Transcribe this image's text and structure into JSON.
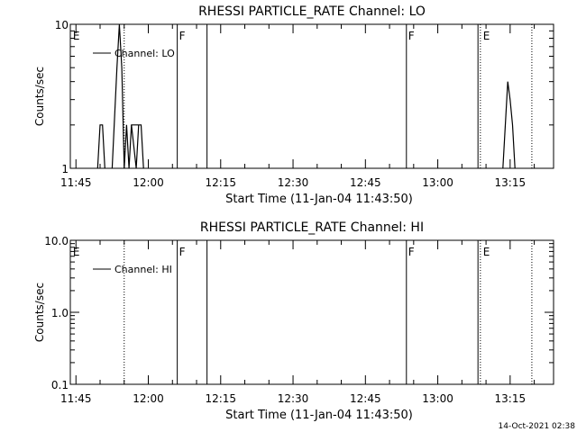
{
  "timestamp": "14-Oct-2021 02:38",
  "chart_data": [
    {
      "type": "line",
      "title": "RHESSI PARTICLE_RATE Channel: LO",
      "xlabel": "Start Time (11-Jan-04 11:43:50)",
      "ylabel": "Counts/sec",
      "y_scale": "log",
      "x_range": [
        "11:43:50",
        "13:24:00"
      ],
      "ylim": [
        1,
        10
      ],
      "x_ticks": [
        "11:45",
        "12:00",
        "12:15",
        "12:30",
        "12:45",
        "13:00",
        "13:15"
      ],
      "y_ticks": [
        "1",
        "10"
      ],
      "legend": "Channel: LO",
      "legend_position": "top-left",
      "marker_labels": [
        {
          "label": "E",
          "time": "11:44:00"
        },
        {
          "label": "F",
          "time": "12:06:00"
        },
        {
          "label": "F",
          "time": "12:53:30"
        },
        {
          "label": "E",
          "time": "13:09:00"
        }
      ],
      "vertical_lines": [
        {
          "time": "11:55:00",
          "style": "dotted"
        },
        {
          "time": "12:06:00",
          "style": "solid"
        },
        {
          "time": "12:12:10",
          "style": "solid"
        },
        {
          "time": "12:53:30",
          "style": "solid"
        },
        {
          "time": "13:08:20",
          "style": "solid"
        },
        {
          "time": "13:08:50",
          "style": "dotted"
        },
        {
          "time": "13:19:30",
          "style": "dotted"
        }
      ],
      "series": [
        {
          "name": "Channel: LO",
          "segments": [
            [
              [
                "11:49:30",
                1
              ],
              [
                "11:50:00",
                2
              ],
              [
                "11:50:30",
                2
              ],
              [
                "11:51:00",
                1
              ]
            ],
            [
              [
                "11:52:30",
                1
              ],
              [
                "11:53:30",
                5
              ],
              [
                "11:54:00",
                10
              ],
              [
                "11:54:30",
                5
              ],
              [
                "11:55:00",
                1
              ],
              [
                "11:55:30",
                2
              ],
              [
                "11:56:00",
                1
              ],
              [
                "11:56:30",
                2
              ],
              [
                "11:58:30",
                2
              ],
              [
                "11:59:00",
                1
              ]
            ],
            [
              [
                "11:56:30",
                2
              ],
              [
                "11:57:30",
                1
              ],
              [
                "11:58:00",
                2
              ]
            ],
            [
              [
                "13:13:30",
                1
              ],
              [
                "13:14:00",
                2
              ],
              [
                "13:14:30",
                4
              ],
              [
                "13:15:00",
                3
              ],
              [
                "13:15:30",
                2
              ],
              [
                "13:16:00",
                1
              ]
            ]
          ]
        }
      ]
    },
    {
      "type": "line",
      "title": "RHESSI PARTICLE_RATE Channel: HI",
      "xlabel": "Start Time (11-Jan-04 11:43:50)",
      "ylabel": "Counts/sec",
      "y_scale": "log",
      "x_range": [
        "11:43:50",
        "13:24:00"
      ],
      "ylim": [
        0.1,
        10
      ],
      "x_ticks": [
        "11:45",
        "12:00",
        "12:15",
        "12:30",
        "12:45",
        "13:00",
        "13:15"
      ],
      "y_ticks": [
        "0.1",
        "1.0",
        "10.0"
      ],
      "legend": "Channel: HI",
      "legend_position": "top-left",
      "marker_labels": [
        {
          "label": "E",
          "time": "11:44:00"
        },
        {
          "label": "F",
          "time": "12:06:00"
        },
        {
          "label": "F",
          "time": "12:53:30"
        },
        {
          "label": "E",
          "time": "13:09:00"
        }
      ],
      "vertical_lines": [
        {
          "time": "11:55:00",
          "style": "dotted"
        },
        {
          "time": "12:06:00",
          "style": "solid"
        },
        {
          "time": "12:12:10",
          "style": "solid"
        },
        {
          "time": "12:53:30",
          "style": "solid"
        },
        {
          "time": "13:08:20",
          "style": "solid"
        },
        {
          "time": "13:08:50",
          "style": "dotted"
        },
        {
          "time": "13:19:30",
          "style": "dotted"
        }
      ],
      "series": [
        {
          "name": "Channel: HI",
          "segments": []
        }
      ]
    }
  ]
}
